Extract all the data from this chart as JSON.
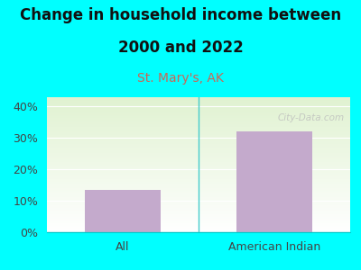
{
  "categories": [
    "All",
    "American Indian"
  ],
  "values": [
    13.5,
    32.0
  ],
  "bar_color": "#C4AACC",
  "title_line1": "Change in household income between",
  "title_line2": "2000 and 2022",
  "subtitle": "St. Mary's, AK",
  "ylabel_ticks": [
    0,
    10,
    20,
    30,
    40
  ],
  "ylim": [
    0,
    43
  ],
  "bg_outer": "#00FFFF",
  "title_fontsize": 12,
  "subtitle_fontsize": 10,
  "tick_fontsize": 9,
  "watermark": "City-Data.com",
  "watermark_color": "#BBBBBB",
  "subtitle_color": "#CC6655",
  "tick_color": "#444444"
}
